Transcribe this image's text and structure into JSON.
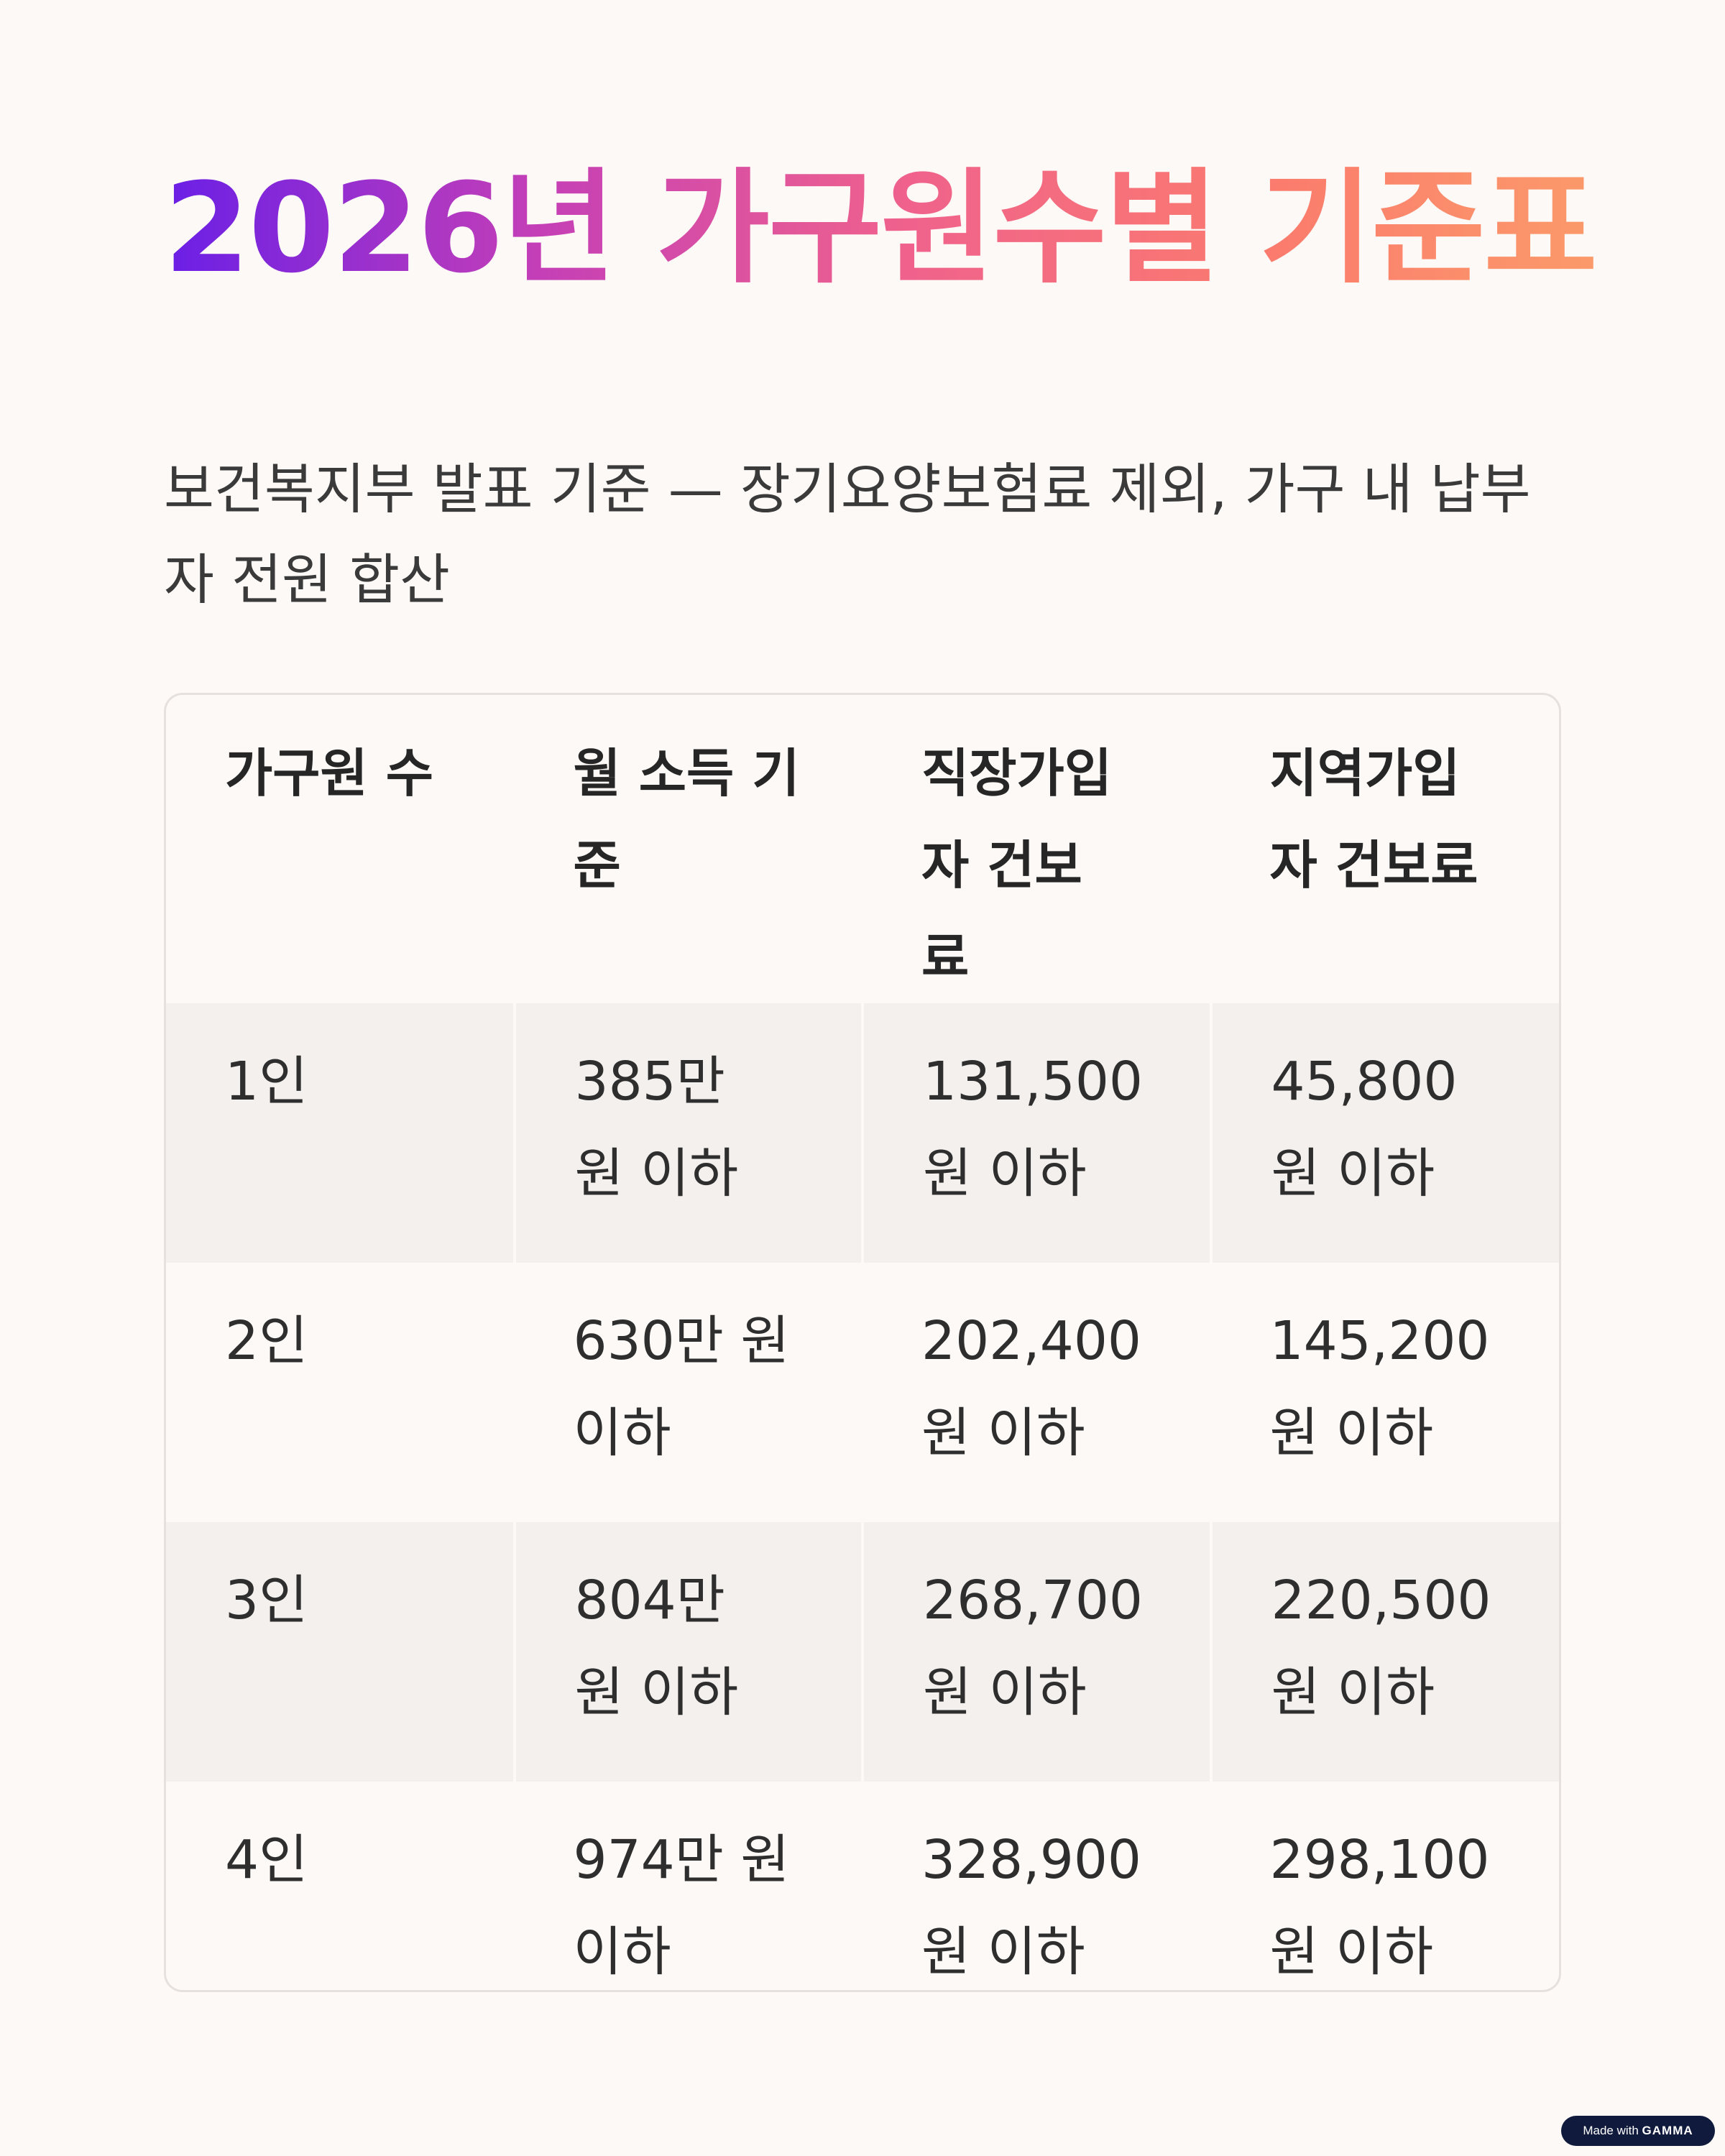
{
  "title": "2026년 가구원수별 기준표",
  "subtitle": "보건복지부 발표 기준 — 장기요양보험료 제외, 가구 내 납부자 전원 합산",
  "table": {
    "headers": [
      "가구원 수",
      "월 소득 기준",
      "직장가입자 건보료",
      "지역가입자 건보료"
    ],
    "rows": [
      [
        "1인",
        "385만 원 이하",
        "131,500 원 이하",
        "45,800 원 이하"
      ],
      [
        "2인",
        "630만 원 이하",
        "202,400 원 이하",
        "145,200 원 이하"
      ],
      [
        "3인",
        "804만 원 이하",
        "268,700 원 이하",
        "220,500 원 이하"
      ],
      [
        "4인",
        "974만 원 이하",
        "328,900 원 이하",
        "298,100 원 이하"
      ]
    ]
  },
  "badge": {
    "prefix": "Made with",
    "brand": "GAMMA"
  },
  "colors": {
    "background": "#fdf9f6",
    "title_gradient_start": "#6a1fe6",
    "title_gradient_end": "#fb9a6a",
    "row_shade": "#f3f0ed",
    "border": "#e6e1dd",
    "badge": "#0f1a3d"
  }
}
